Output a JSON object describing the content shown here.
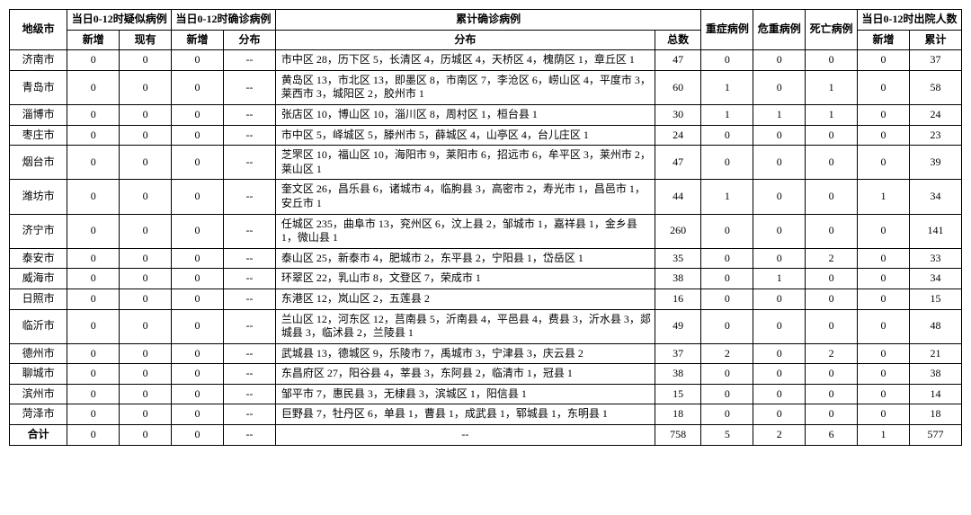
{
  "headers": {
    "city": "地级市",
    "suspected": "当日0-12时疑似病例",
    "confirmed_day": "当日0-12时确诊病例",
    "cumulative": "累计确诊病例",
    "severe": "重症病例",
    "critical": "危重病例",
    "death": "死亡病例",
    "discharged": "当日0-12时出院人数",
    "new": "新增",
    "existing": "现有",
    "distribution": "分布",
    "total": "总数",
    "cumulative_label": "累计",
    "sum": "合计"
  },
  "rows": [
    {
      "city": "济南市",
      "s_new": "0",
      "s_exist": "0",
      "c_new": "0",
      "c_dist": "--",
      "dist": "市中区 28，历下区 5，长清区 4，历城区 4，天桥区 4，槐荫区 1，章丘区 1",
      "total": "47",
      "severe": "0",
      "critical": "0",
      "death": "0",
      "d_new": "0",
      "d_cum": "37"
    },
    {
      "city": "青岛市",
      "s_new": "0",
      "s_exist": "0",
      "c_new": "0",
      "c_dist": "--",
      "dist": "黄岛区 13，市北区 13，即墨区 8，市南区 7，李沧区 6，崂山区 4，平度市 3，莱西市 3，城阳区 2，胶州市 1",
      "total": "60",
      "severe": "1",
      "critical": "0",
      "death": "1",
      "d_new": "0",
      "d_cum": "58"
    },
    {
      "city": "淄博市",
      "s_new": "0",
      "s_exist": "0",
      "c_new": "0",
      "c_dist": "--",
      "dist": "张店区 10，博山区 10，淄川区 8，周村区 1，桓台县 1",
      "total": "30",
      "severe": "1",
      "critical": "1",
      "death": "1",
      "d_new": "0",
      "d_cum": "24"
    },
    {
      "city": "枣庄市",
      "s_new": "0",
      "s_exist": "0",
      "c_new": "0",
      "c_dist": "--",
      "dist": "市中区 5，峄城区 5，滕州市 5，薛城区 4，山亭区 4，台儿庄区 1",
      "total": "24",
      "severe": "0",
      "critical": "0",
      "death": "0",
      "d_new": "0",
      "d_cum": "23"
    },
    {
      "city": "烟台市",
      "s_new": "0",
      "s_exist": "0",
      "c_new": "0",
      "c_dist": "--",
      "dist": "芝罘区 10，福山区 10，海阳市 9，莱阳市 6，招远市 6，牟平区 3，莱州市 2，莱山区 1",
      "total": "47",
      "severe": "0",
      "critical": "0",
      "death": "0",
      "d_new": "0",
      "d_cum": "39"
    },
    {
      "city": "潍坊市",
      "s_new": "0",
      "s_exist": "0",
      "c_new": "0",
      "c_dist": "--",
      "dist": "奎文区 26，昌乐县 6，诸城市 4，临朐县 3，高密市 2，寿光市 1，昌邑市 1，安丘市 1",
      "total": "44",
      "severe": "1",
      "critical": "0",
      "death": "0",
      "d_new": "1",
      "d_cum": "34"
    },
    {
      "city": "济宁市",
      "s_new": "0",
      "s_exist": "0",
      "c_new": "0",
      "c_dist": "--",
      "dist": "任城区 235，曲阜市 13，兖州区 6，汶上县 2，邹城市 1，嘉祥县 1，金乡县 1，微山县 1",
      "total": "260",
      "severe": "0",
      "critical": "0",
      "death": "0",
      "d_new": "0",
      "d_cum": "141"
    },
    {
      "city": "泰安市",
      "s_new": "0",
      "s_exist": "0",
      "c_new": "0",
      "c_dist": "--",
      "dist": "泰山区 25，新泰市 4，肥城市 2，东平县 2，宁阳县 1，岱岳区 1",
      "total": "35",
      "severe": "0",
      "critical": "0",
      "death": "2",
      "d_new": "0",
      "d_cum": "33"
    },
    {
      "city": "威海市",
      "s_new": "0",
      "s_exist": "0",
      "c_new": "0",
      "c_dist": "--",
      "dist": "环翠区 22，乳山市 8，文登区 7，荣成市 1",
      "total": "38",
      "severe": "0",
      "critical": "1",
      "death": "0",
      "d_new": "0",
      "d_cum": "34"
    },
    {
      "city": "日照市",
      "s_new": "0",
      "s_exist": "0",
      "c_new": "0",
      "c_dist": "--",
      "dist": "东港区 12，岚山区 2，五莲县 2",
      "total": "16",
      "severe": "0",
      "critical": "0",
      "death": "0",
      "d_new": "0",
      "d_cum": "15"
    },
    {
      "city": "临沂市",
      "s_new": "0",
      "s_exist": "0",
      "c_new": "0",
      "c_dist": "--",
      "dist": "兰山区 12，河东区 12，莒南县 5，沂南县 4，平邑县 4，费县 3，沂水县 3，郯城县 3，临沭县 2，兰陵县 1",
      "total": "49",
      "severe": "0",
      "critical": "0",
      "death": "0",
      "d_new": "0",
      "d_cum": "48"
    },
    {
      "city": "德州市",
      "s_new": "0",
      "s_exist": "0",
      "c_new": "0",
      "c_dist": "--",
      "dist": "武城县 13，德城区 9，乐陵市 7，禹城市 3，宁津县 3，庆云县 2",
      "total": "37",
      "severe": "2",
      "critical": "0",
      "death": "2",
      "d_new": "0",
      "d_cum": "21"
    },
    {
      "city": "聊城市",
      "s_new": "0",
      "s_exist": "0",
      "c_new": "0",
      "c_dist": "--",
      "dist": "东昌府区 27，阳谷县 4，莘县 3，东阿县 2，临清市 1，冠县 1",
      "total": "38",
      "severe": "0",
      "critical": "0",
      "death": "0",
      "d_new": "0",
      "d_cum": "38"
    },
    {
      "city": "滨州市",
      "s_new": "0",
      "s_exist": "0",
      "c_new": "0",
      "c_dist": "--",
      "dist": "邹平市 7，惠民县 3，无棣县 3，滨城区 1，阳信县 1",
      "total": "15",
      "severe": "0",
      "critical": "0",
      "death": "0",
      "d_new": "0",
      "d_cum": "14"
    },
    {
      "city": "菏泽市",
      "s_new": "0",
      "s_exist": "0",
      "c_new": "0",
      "c_dist": "--",
      "dist": "巨野县 7，牡丹区 6，单县 1，曹县 1，成武县 1，郓城县 1，东明县 1",
      "total": "18",
      "severe": "0",
      "critical": "0",
      "death": "0",
      "d_new": "0",
      "d_cum": "18"
    }
  ],
  "totals": {
    "s_new": "0",
    "s_exist": "0",
    "c_new": "0",
    "c_dist": "--",
    "dist": "--",
    "total": "758",
    "severe": "5",
    "critical": "2",
    "death": "6",
    "d_new": "1",
    "d_cum": "577"
  }
}
